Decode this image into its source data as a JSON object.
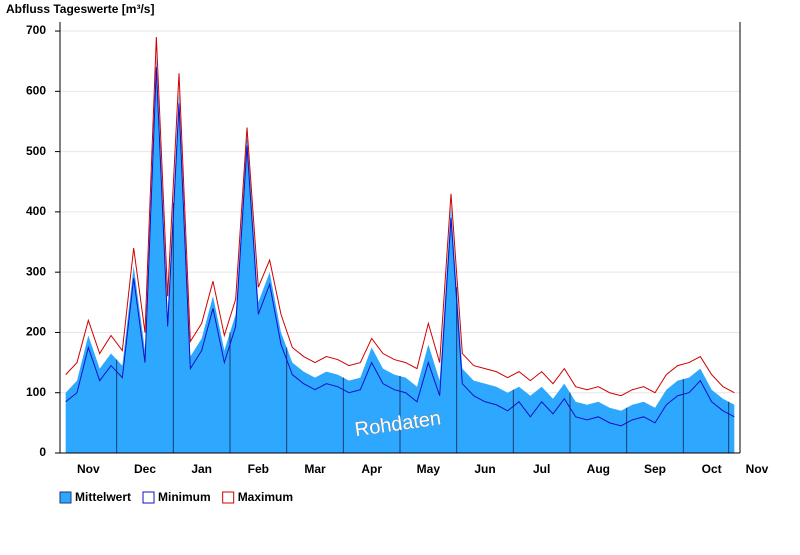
{
  "chart_data": {
    "type": "area",
    "title": "Abfluss Tageswerte [m³/s]",
    "annotation": "Rohdaten",
    "categories": [
      null,
      null,
      "Nov",
      null,
      null,
      null,
      null,
      "Dec",
      null,
      null,
      null,
      null,
      "Jan",
      null,
      null,
      null,
      null,
      "Feb",
      null,
      null,
      null,
      null,
      "Mar",
      null,
      null,
      null,
      null,
      "Apr",
      null,
      null,
      null,
      null,
      "May",
      null,
      null,
      null,
      null,
      "Jun",
      null,
      null,
      null,
      null,
      "Jul",
      null,
      null,
      null,
      null,
      "Aug",
      null,
      null,
      null,
      null,
      "Sep",
      null,
      null,
      null,
      null,
      "Oct",
      null,
      null,
      null,
      "Nov"
    ],
    "series": [
      {
        "name": "Mittelwert",
        "color": "#2ea8ff",
        "values": [
          100,
          120,
          195,
          140,
          165,
          145,
          310,
          170,
          660,
          230,
          600,
          160,
          190,
          260,
          170,
          230,
          530,
          250,
          300,
          200,
          150,
          135,
          125,
          135,
          130,
          120,
          125,
          175,
          140,
          130,
          125,
          110,
          180,
          120,
          410,
          140,
          120,
          115,
          110,
          100,
          110,
          95,
          110,
          90,
          115,
          85,
          80,
          85,
          75,
          70,
          80,
          85,
          75,
          105,
          120,
          125,
          140,
          105,
          90,
          80,
          null,
          null
        ]
      },
      {
        "name": "Minimum",
        "color": "#1010c8",
        "values": [
          85,
          100,
          175,
          120,
          145,
          125,
          290,
          150,
          640,
          210,
          580,
          140,
          170,
          240,
          150,
          210,
          510,
          230,
          280,
          180,
          130,
          115,
          105,
          115,
          110,
          100,
          105,
          150,
          115,
          105,
          100,
          85,
          150,
          95,
          390,
          115,
          95,
          85,
          80,
          70,
          85,
          60,
          85,
          65,
          90,
          60,
          55,
          60,
          50,
          45,
          55,
          60,
          50,
          80,
          95,
          100,
          120,
          85,
          70,
          60,
          null,
          null
        ]
      },
      {
        "name": "Maximum",
        "color": "#d00000",
        "values": [
          130,
          150,
          220,
          165,
          195,
          170,
          340,
          200,
          690,
          260,
          630,
          185,
          215,
          285,
          195,
          255,
          540,
          275,
          320,
          230,
          175,
          160,
          150,
          160,
          155,
          145,
          150,
          190,
          165,
          155,
          150,
          140,
          215,
          150,
          430,
          165,
          145,
          140,
          135,
          125,
          135,
          120,
          135,
          115,
          140,
          110,
          105,
          110,
          100,
          95,
          105,
          110,
          100,
          130,
          145,
          150,
          160,
          130,
          110,
          100,
          null,
          null
        ]
      }
    ],
    "ylim": [
      0,
      715
    ],
    "yticks": [
      0,
      100,
      200,
      300,
      400,
      500,
      600,
      700
    ],
    "grid": true
  }
}
